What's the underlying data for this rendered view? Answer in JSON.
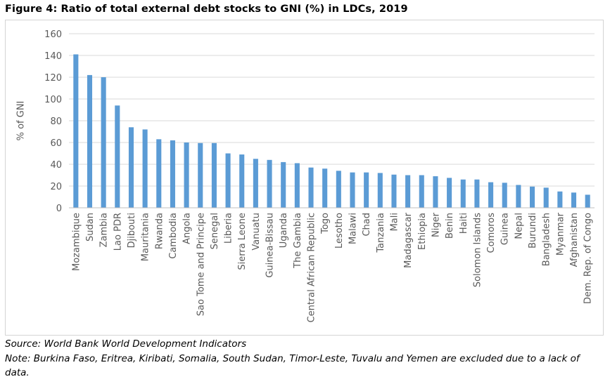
{
  "figure": {
    "title": "Figure 4: Ratio of total external debt stocks to GNI (%) in LDCs, 2019",
    "source": "Source: World Bank World Development Indicators",
    "note": "Note: Burkina Faso, Eritrea, Kiribati, Somalia, South Sudan, Timor-Leste, Tuvalu and Yemen are excluded due to a lack of data."
  },
  "colors": {
    "bar": "#5B9BD5",
    "grid": "#d9d9d9",
    "axis": "#bfbfbf",
    "tick_text": "#595959"
  },
  "chart_data": {
    "type": "bar",
    "title": "",
    "xlabel": "",
    "ylabel": "% of GNI",
    "ylim": [
      0,
      160
    ],
    "yticks": [
      0,
      20,
      40,
      60,
      80,
      100,
      120,
      140,
      160
    ],
    "grid": true,
    "legend": "none",
    "categories": [
      "Mozambique",
      "Sudan",
      "Zambia",
      "Lao PDR",
      "Djibouti",
      "Mauritania",
      "Rwanda",
      "Cambodia",
      "Angola",
      "Sao Tome and Principe",
      "Senegal",
      "Liberia",
      "Sierra Leone",
      "Vanuatu",
      "Guinea-Bissau",
      "Uganda",
      "The Gambia",
      "Central African Republic",
      "Togo",
      "Lesotho",
      "Malawi",
      "Chad",
      "Tanzania",
      "Mali",
      "Madagascar",
      "Ethiopia",
      "Niger",
      "Benin",
      "Haiti",
      "Solomon Islands",
      "Comoros",
      "Guinea",
      "Nepal",
      "Burundi",
      "Bangladesh",
      "Myanmar",
      "Afghanistan",
      "Dem. Rep. of Congo"
    ],
    "values": [
      141,
      122,
      120,
      94,
      74,
      72,
      63,
      62,
      60,
      59.5,
      59.5,
      50,
      49,
      45,
      44,
      42,
      41,
      37,
      36,
      34,
      32.5,
      32.5,
      32,
      30.5,
      30,
      30,
      29,
      27.5,
      26,
      26,
      23.5,
      23,
      21,
      19.5,
      18.5,
      15,
      14,
      12
    ]
  }
}
